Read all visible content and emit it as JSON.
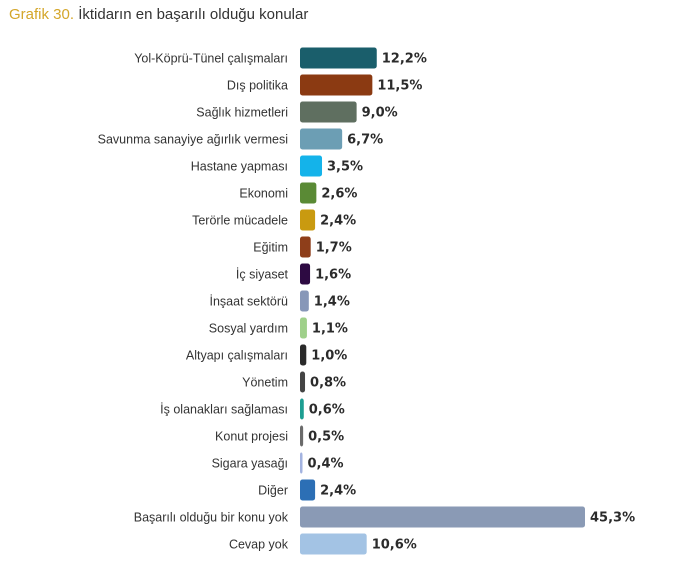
{
  "title_prefix": "Grafik 30.",
  "title_text": "İktidarın en başarılı olduğu konular",
  "chart_data": {
    "type": "bar",
    "orientation": "horizontal",
    "title": "Grafik 30. İktidarın en başarılı olduğu konular",
    "xlabel": "",
    "ylabel": "",
    "xlim": [
      0,
      45.3
    ],
    "grid": false,
    "legend": "none",
    "categories": [
      "Yol-Köprü-Tünel çalışmaları",
      "Dış politika",
      "Sağlık hizmetleri",
      "Savunma sanayiye ağırlık vermesi",
      "Hastane yapması",
      "Ekonomi",
      "Terörle mücadele",
      "Eğitim",
      "İç siyaset",
      "İnşaat sektörü",
      "Sosyal yardım",
      "Altyapı çalışmaları",
      "Yönetim",
      "İş olanakları sağlaması",
      "Konut projesi",
      "Sigara yasağı",
      "Diğer",
      "Başarılı olduğu bir konu yok",
      "Cevap yok"
    ],
    "values": [
      12.2,
      11.5,
      9.0,
      6.7,
      3.5,
      2.6,
      2.4,
      1.7,
      1.6,
      1.4,
      1.1,
      1.0,
      0.8,
      0.6,
      0.5,
      0.4,
      2.4,
      45.3,
      10.6
    ],
    "value_labels": [
      "12,2%",
      "11,5%",
      "9,0%",
      "6,7%",
      "3,5%",
      "2,6%",
      "2,4%",
      "1,7%",
      "1,6%",
      "1,4%",
      "1,1%",
      "1,0%",
      "0,8%",
      "0,6%",
      "0,5%",
      "0,4%",
      "2,4%",
      "45,3%",
      "10,6%"
    ],
    "colors": [
      "#1a5e6b",
      "#8b3a12",
      "#5f6f60",
      "#6c9eb4",
      "#14b3ea",
      "#5a8a35",
      "#c99a10",
      "#8e3e1a",
      "#2d0a42",
      "#8797b8",
      "#9fd08a",
      "#2a2a2a",
      "#444444",
      "#1d9e92",
      "#6a6a6a",
      "#a3b3e0",
      "#2c6fb5",
      "#8a9ab5",
      "#a3c3e4"
    ]
  }
}
